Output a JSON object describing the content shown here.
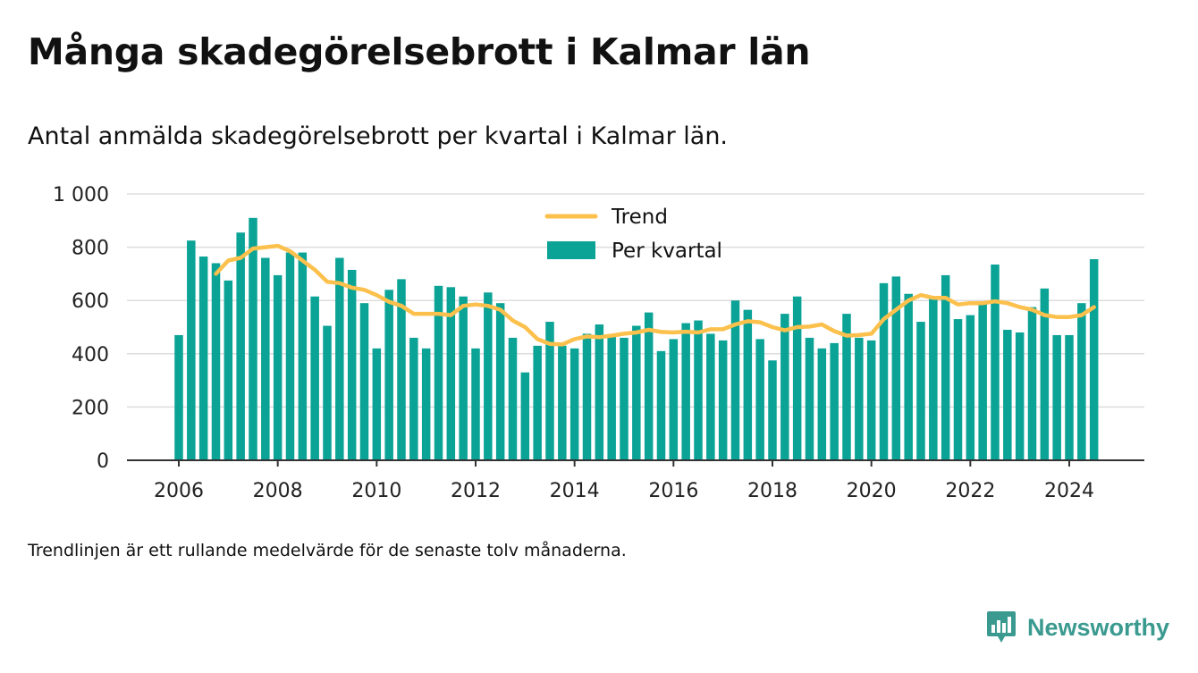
{
  "title": "Många skadegörelsebrott i Kalmar län",
  "subtitle": "Antal anmälda skadegörelsebrott per kvartal i Kalmar län.",
  "footnote": "Trendlinjen är ett rullande medelvärde för de senaste tolv månaderna.",
  "brand": {
    "name": "Newsworthy",
    "icon": "newsworthy-logo-icon",
    "color": "#3a9a8f"
  },
  "colors": {
    "bars": "#0aa396",
    "trend": "#fcc04c",
    "grid": "#dddddd",
    "axis": "#333333"
  },
  "chart_data": {
    "type": "bar",
    "y_ticks": [
      "1 000",
      "800",
      "600",
      "400",
      "200",
      "0"
    ],
    "x_ticks": [
      "2006",
      "2008",
      "2010",
      "2012",
      "2014",
      "2016",
      "2018",
      "2020",
      "2022",
      "2024"
    ],
    "ylim": [
      0,
      1000
    ],
    "xlim": [
      2005,
      2025.5
    ],
    "grid": true,
    "legend_position": "top",
    "series": [
      {
        "name": "Per kvartal",
        "type": "bar",
        "x": [
          2006.0,
          2006.25,
          2006.5,
          2006.75,
          2007.0,
          2007.25,
          2007.5,
          2007.75,
          2008.0,
          2008.25,
          2008.5,
          2008.75,
          2009.0,
          2009.25,
          2009.5,
          2009.75,
          2010.0,
          2010.25,
          2010.5,
          2010.75,
          2011.0,
          2011.25,
          2011.5,
          2011.75,
          2012.0,
          2012.25,
          2012.5,
          2012.75,
          2013.0,
          2013.25,
          2013.5,
          2013.75,
          2014.0,
          2014.25,
          2014.5,
          2014.75,
          2015.0,
          2015.25,
          2015.5,
          2015.75,
          2016.0,
          2016.25,
          2016.5,
          2016.75,
          2017.0,
          2017.25,
          2017.5,
          2017.75,
          2018.0,
          2018.25,
          2018.5,
          2018.75,
          2019.0,
          2019.25,
          2019.5,
          2019.75,
          2020.0,
          2020.25,
          2020.5,
          2020.75,
          2021.0,
          2021.25,
          2021.5,
          2021.75,
          2022.0,
          2022.25,
          2022.5,
          2022.75,
          2023.0,
          2023.25,
          2023.5,
          2023.75,
          2024.0,
          2024.25,
          2024.5
        ],
        "values": [
          470,
          825,
          765,
          740,
          675,
          855,
          910,
          760,
          695,
          780,
          780,
          615,
          505,
          760,
          715,
          590,
          420,
          640,
          680,
          460,
          420,
          655,
          650,
          615,
          420,
          630,
          590,
          460,
          330,
          430,
          520,
          430,
          420,
          475,
          510,
          470,
          460,
          505,
          555,
          410,
          455,
          515,
          525,
          475,
          450,
          600,
          565,
          455,
          375,
          550,
          615,
          460,
          420,
          440,
          550,
          460,
          450,
          665,
          690,
          625,
          520,
          610,
          695,
          530,
          545,
          595,
          735,
          490,
          480,
          575,
          645,
          470,
          470,
          590,
          755
        ]
      },
      {
        "name": "Trend",
        "type": "line",
        "x": [
          2006.75,
          2007.0,
          2007.25,
          2007.5,
          2007.75,
          2008.0,
          2008.25,
          2008.5,
          2008.75,
          2009.0,
          2009.25,
          2009.5,
          2009.75,
          2010.0,
          2010.25,
          2010.5,
          2010.75,
          2011.0,
          2011.25,
          2011.5,
          2011.75,
          2012.0,
          2012.25,
          2012.5,
          2012.75,
          2013.0,
          2013.25,
          2013.5,
          2013.75,
          2014.0,
          2014.25,
          2014.5,
          2014.75,
          2015.0,
          2015.25,
          2015.5,
          2015.75,
          2016.0,
          2016.25,
          2016.5,
          2016.75,
          2017.0,
          2017.25,
          2017.5,
          2017.75,
          2018.0,
          2018.25,
          2018.5,
          2018.75,
          2019.0,
          2019.25,
          2019.5,
          2019.75,
          2020.0,
          2020.25,
          2020.5,
          2020.75,
          2021.0,
          2021.25,
          2021.5,
          2021.75,
          2022.0,
          2022.25,
          2022.5,
          2022.75,
          2023.0,
          2023.25,
          2023.5,
          2023.75,
          2024.0,
          2024.25,
          2024.5
        ],
        "values": [
          700,
          750,
          760,
          795,
          800,
          805,
          785,
          750,
          715,
          670,
          665,
          648,
          640,
          620,
          595,
          580,
          550,
          550,
          550,
          545,
          580,
          585,
          580,
          565,
          525,
          500,
          455,
          437,
          435,
          455,
          465,
          462,
          468,
          475,
          480,
          490,
          482,
          480,
          483,
          480,
          492,
          492,
          510,
          522,
          518,
          500,
          488,
          500,
          502,
          510,
          485,
          468,
          470,
          475,
          530,
          565,
          600,
          620,
          610,
          610,
          585,
          590,
          590,
          597,
          590,
          575,
          565,
          545,
          538,
          538,
          545,
          575
        ]
      }
    ]
  }
}
